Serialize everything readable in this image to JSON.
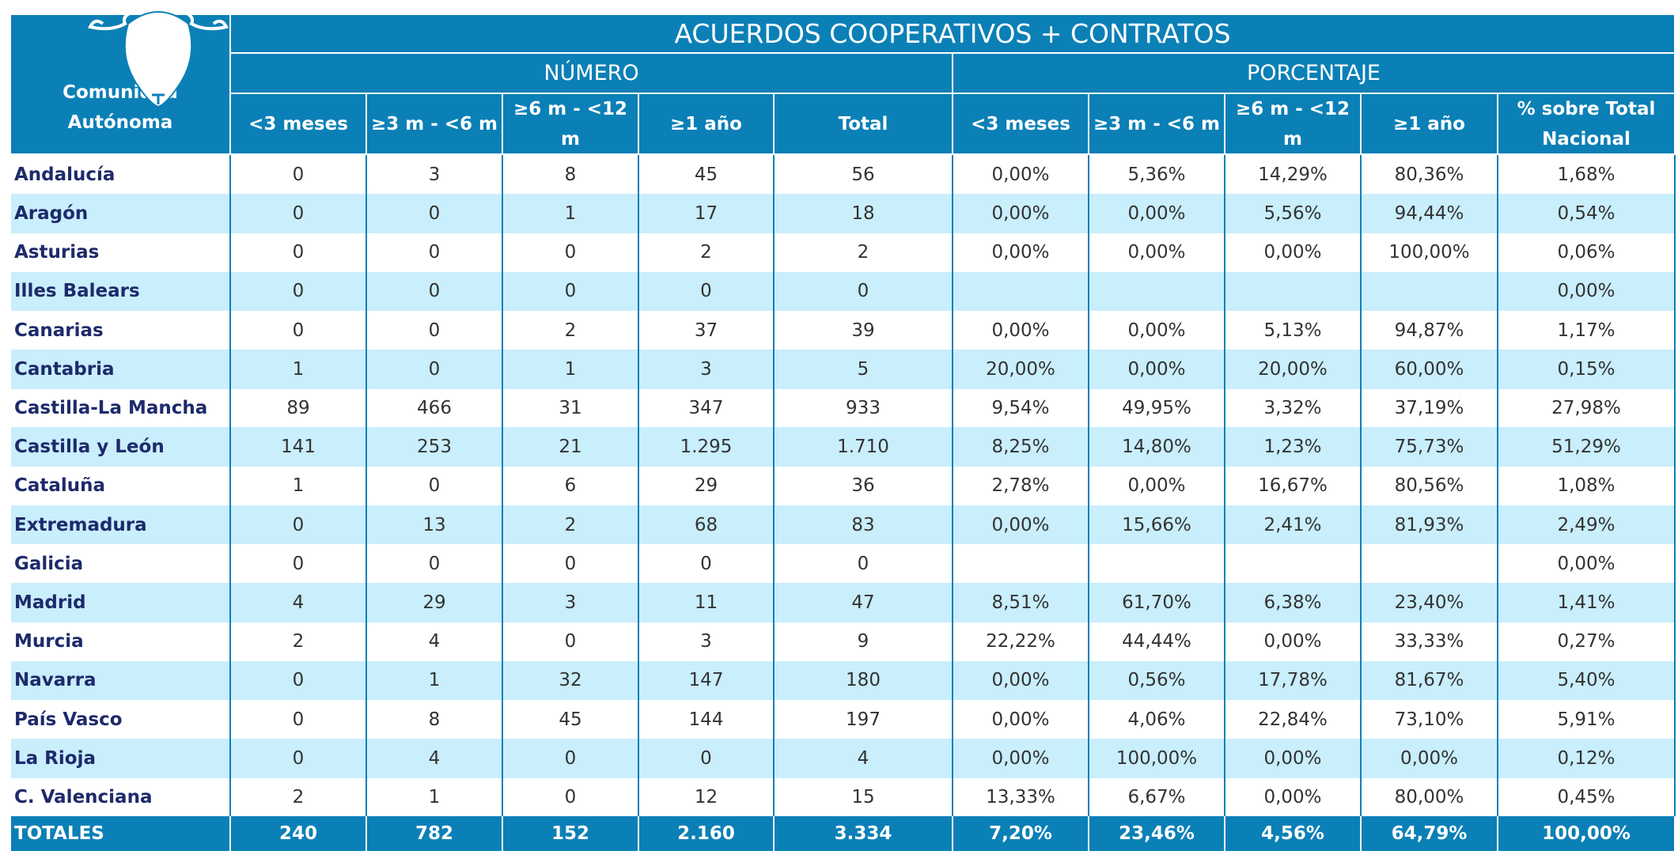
{
  "header": {
    "title": "ACUERDOS COOPERATIVOS + CONTRATOS",
    "groups": [
      "NÚMERO",
      "PORCENTAJE"
    ],
    "columns": [
      "Comunidad Autónoma",
      "<3 meses",
      "≥3 m - <6 m",
      "≥6 m - <12 m",
      "≥1 año",
      "Total",
      "<3 meses",
      "≥3 m - <6 m",
      "≥6 m - <12 m",
      "≥1 año",
      "% sobre Total Nacional"
    ]
  },
  "table": {
    "rows": [
      [
        "Andalucía",
        "0",
        "3",
        "8",
        "45",
        "56",
        "0,00%",
        "5,36%",
        "14,29%",
        "80,36%",
        "1,68%"
      ],
      [
        "Aragón",
        "0",
        "0",
        "1",
        "17",
        "18",
        "0,00%",
        "0,00%",
        "5,56%",
        "94,44%",
        "0,54%"
      ],
      [
        "Asturias",
        "0",
        "0",
        "0",
        "2",
        "2",
        "0,00%",
        "0,00%",
        "0,00%",
        "100,00%",
        "0,06%"
      ],
      [
        "Illes Balears",
        "0",
        "0",
        "0",
        "0",
        "0",
        null,
        null,
        null,
        null,
        "0,00%"
      ],
      [
        "Canarias",
        "0",
        "0",
        "2",
        "37",
        "39",
        "0,00%",
        "0,00%",
        "5,13%",
        "94,87%",
        "1,17%"
      ],
      [
        "Cantabria",
        "1",
        "0",
        "1",
        "3",
        "5",
        "20,00%",
        "0,00%",
        "20,00%",
        "60,00%",
        "0,15%"
      ],
      [
        "Castilla-La Mancha",
        "89",
        "466",
        "31",
        "347",
        "933",
        "9,54%",
        "49,95%",
        "3,32%",
        "37,19%",
        "27,98%"
      ],
      [
        "Castilla y León",
        "141",
        "253",
        "21",
        "1.295",
        "1.710",
        "8,25%",
        "14,80%",
        "1,23%",
        "75,73%",
        "51,29%"
      ],
      [
        "Cataluña",
        "1",
        "0",
        "6",
        "29",
        "36",
        "2,78%",
        "0,00%",
        "16,67%",
        "80,56%",
        "1,08%"
      ],
      [
        "Extremadura",
        "0",
        "13",
        "2",
        "68",
        "83",
        "0,00%",
        "15,66%",
        "2,41%",
        "81,93%",
        "2,49%"
      ],
      [
        "Galicia",
        "0",
        "0",
        "0",
        "0",
        "0",
        null,
        null,
        null,
        null,
        "0,00%"
      ],
      [
        "Madrid",
        "4",
        "29",
        "3",
        "11",
        "47",
        "8,51%",
        "61,70%",
        "6,38%",
        "23,40%",
        "1,41%"
      ],
      [
        "Murcia",
        "2",
        "4",
        "0",
        "3",
        "9",
        "22,22%",
        "44,44%",
        "0,00%",
        "33,33%",
        "0,27%"
      ],
      [
        "Navarra",
        "0",
        "1",
        "32",
        "147",
        "180",
        "0,00%",
        "0,56%",
        "17,78%",
        "81,67%",
        "5,40%"
      ],
      [
        "País Vasco",
        "0",
        "8",
        "45",
        "144",
        "197",
        "0,00%",
        "4,06%",
        "22,84%",
        "73,10%",
        "5,91%"
      ],
      [
        "La Rioja",
        "0",
        "4",
        "0",
        "0",
        "4",
        "0,00%",
        "100,00%",
        "0,00%",
        "0,00%",
        "0,12%"
      ],
      [
        "C. Valenciana",
        "2",
        "1",
        "0",
        "12",
        "15",
        "13,33%",
        "6,67%",
        "0,00%",
        "80,00%",
        "0,45%"
      ]
    ],
    "totals": [
      "TOTALES",
      "240",
      "782",
      "152",
      "2.160",
      "3.334",
      "7,20%",
      "23,46%",
      "4,56%",
      "64,79%",
      "100,00%"
    ]
  }
}
